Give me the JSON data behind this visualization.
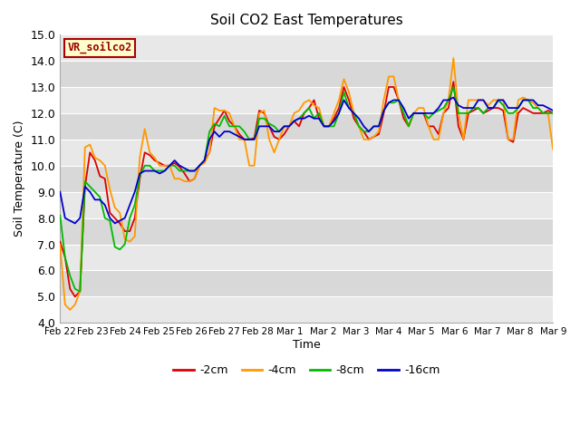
{
  "title": "Soil CO2 East Temperatures",
  "xlabel": "Time",
  "ylabel": "Soil Temperature (C)",
  "ylim": [
    4.0,
    15.0
  ],
  "yticks": [
    4.0,
    5.0,
    6.0,
    7.0,
    8.0,
    9.0,
    10.0,
    11.0,
    12.0,
    13.0,
    14.0,
    15.0
  ],
  "xtick_labels": [
    "Feb 22",
    "Feb 23",
    "Feb 24",
    "Feb 25",
    "Feb 26",
    "Feb 27",
    "Feb 28",
    "Mar 1",
    "Mar 2",
    "Mar 3",
    "Mar 4",
    "Mar 5",
    "Mar 6",
    "Mar 7",
    "Mar 8",
    "Mar 9"
  ],
  "colors": {
    "m2cm": "#dd0000",
    "m4cm": "#ff9900",
    "m8cm": "#00bb00",
    "m16cm": "#0000cc"
  },
  "legend_label": "VR_soilco2",
  "legend_entries": [
    "-2cm",
    "-4cm",
    "-8cm",
    "-16cm"
  ],
  "band_light": "#e8e8e8",
  "band_dark": "#d8d8d8",
  "m2cm": [
    7.1,
    6.5,
    5.3,
    5.0,
    5.2,
    9.2,
    10.5,
    10.2,
    9.6,
    9.5,
    8.2,
    8.0,
    7.8,
    7.5,
    7.5,
    8.0,
    9.5,
    10.5,
    10.4,
    10.2,
    10.1,
    10.0,
    10.0,
    10.1,
    9.95,
    9.7,
    9.4,
    9.5,
    10.0,
    10.2,
    10.5,
    11.5,
    11.8,
    12.1,
    11.7,
    11.5,
    11.2,
    11.0,
    11.0,
    11.05,
    12.1,
    12.0,
    11.5,
    11.1,
    11.0,
    11.2,
    11.5,
    11.7,
    11.5,
    12.0,
    12.2,
    12.5,
    11.8,
    11.5,
    11.5,
    11.8,
    12.2,
    13.0,
    12.5,
    11.8,
    11.5,
    11.3,
    11.0,
    11.1,
    11.2,
    12.0,
    13.0,
    13.0,
    12.5,
    11.8,
    11.5,
    12.0,
    12.0,
    12.0,
    11.5,
    11.5,
    11.2,
    12.0,
    12.2,
    13.2,
    11.5,
    11.0,
    12.0,
    12.1,
    12.2,
    12.0,
    12.1,
    12.2,
    12.2,
    12.1,
    11.0,
    10.9,
    12.0,
    12.2,
    12.1,
    12.0,
    12.0,
    12.0,
    12.1,
    12.0
  ],
  "m4cm": [
    7.0,
    4.7,
    4.5,
    4.7,
    5.2,
    10.7,
    10.8,
    10.3,
    10.2,
    10.0,
    9.1,
    8.4,
    8.2,
    7.2,
    7.1,
    7.3,
    10.3,
    11.4,
    10.5,
    10.3,
    10.0,
    10.0,
    10.0,
    9.5,
    9.5,
    9.4,
    9.4,
    9.5,
    10.0,
    10.1,
    10.5,
    12.2,
    12.1,
    12.1,
    12.0,
    11.5,
    11.0,
    11.0,
    10.0,
    10.0,
    12.0,
    12.1,
    11.0,
    10.5,
    11.0,
    11.5,
    11.5,
    12.0,
    12.1,
    12.4,
    12.5,
    12.3,
    12.2,
    11.5,
    11.5,
    12.0,
    12.5,
    13.3,
    12.8,
    12.0,
    11.5,
    11.0,
    11.0,
    11.1,
    11.3,
    12.5,
    13.4,
    13.4,
    12.5,
    12.0,
    11.5,
    12.0,
    12.2,
    12.2,
    11.5,
    11.0,
    11.0,
    12.0,
    12.5,
    14.1,
    12.0,
    11.0,
    12.5,
    12.5,
    12.5,
    12.5,
    12.3,
    12.5,
    12.5,
    12.5,
    11.0,
    11.0,
    12.5,
    12.6,
    12.5,
    12.4,
    12.2,
    12.0,
    12.0,
    10.6
  ],
  "m8cm": [
    8.1,
    6.5,
    5.8,
    5.3,
    5.2,
    9.4,
    9.2,
    9.0,
    8.8,
    8.0,
    7.9,
    6.9,
    6.8,
    7.0,
    8.0,
    8.5,
    9.6,
    10.0,
    10.0,
    9.8,
    9.8,
    9.8,
    10.0,
    10.0,
    9.8,
    9.8,
    9.8,
    9.8,
    10.0,
    10.2,
    11.3,
    11.6,
    11.5,
    11.9,
    11.5,
    11.5,
    11.5,
    11.3,
    11.0,
    11.0,
    11.8,
    11.8,
    11.6,
    11.5,
    11.3,
    11.5,
    11.5,
    11.7,
    11.8,
    12.0,
    12.2,
    11.8,
    12.0,
    11.5,
    11.5,
    11.5,
    12.0,
    12.8,
    12.2,
    12.0,
    11.5,
    11.3,
    11.3,
    11.5,
    11.5,
    12.1,
    12.4,
    12.4,
    12.5,
    12.0,
    11.5,
    12.0,
    12.0,
    12.0,
    11.8,
    12.0,
    12.1,
    12.2,
    12.5,
    13.0,
    12.0,
    12.0,
    12.0,
    12.2,
    12.2,
    12.0,
    12.2,
    12.2,
    12.5,
    12.3,
    12.0,
    12.0,
    12.2,
    12.5,
    12.5,
    12.2,
    12.2,
    12.0,
    12.0,
    12.0
  ],
  "m16cm": [
    9.0,
    8.0,
    7.9,
    7.8,
    8.0,
    9.2,
    9.0,
    8.7,
    8.7,
    8.5,
    8.0,
    7.8,
    7.9,
    8.0,
    8.5,
    9.0,
    9.7,
    9.8,
    9.8,
    9.8,
    9.7,
    9.8,
    10.0,
    10.2,
    10.0,
    9.9,
    9.8,
    9.8,
    10.0,
    10.2,
    11.0,
    11.3,
    11.1,
    11.3,
    11.3,
    11.2,
    11.1,
    11.0,
    11.0,
    11.0,
    11.5,
    11.5,
    11.5,
    11.3,
    11.3,
    11.5,
    11.5,
    11.7,
    11.8,
    11.8,
    11.9,
    11.8,
    11.8,
    11.5,
    11.5,
    11.7,
    12.0,
    12.5,
    12.2,
    12.0,
    11.8,
    11.5,
    11.3,
    11.5,
    11.5,
    12.1,
    12.4,
    12.5,
    12.5,
    12.2,
    11.8,
    12.0,
    12.0,
    12.0,
    12.0,
    12.0,
    12.2,
    12.5,
    12.5,
    12.6,
    12.3,
    12.2,
    12.2,
    12.2,
    12.5,
    12.5,
    12.2,
    12.2,
    12.5,
    12.5,
    12.2,
    12.2,
    12.2,
    12.5,
    12.5,
    12.5,
    12.3,
    12.3,
    12.2,
    12.1
  ]
}
